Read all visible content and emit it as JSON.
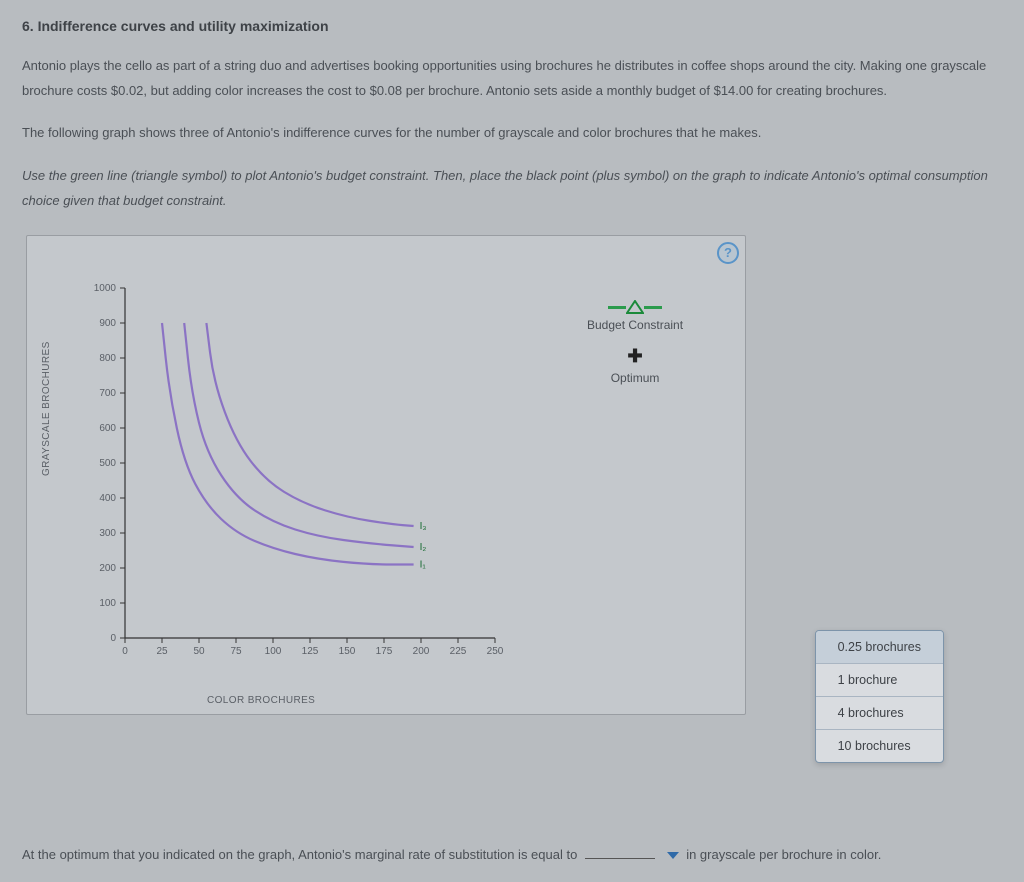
{
  "title": "6. Indifference curves and utility maximization",
  "para1": "Antonio plays the cello as part of a string duo and advertises booking opportunities using brochures he distributes in coffee shops around the city. Making one grayscale brochure costs $0.02, but adding color increases the cost to $0.08 per brochure. Antonio sets aside a monthly budget of $14.00 for creating brochures.",
  "para2": "The following graph shows three of Antonio's indifference curves for the number of grayscale and color brochures that he makes.",
  "instruction": "Use the green line (triangle symbol) to plot Antonio's budget constraint. Then, place the black point (plus symbol) on the graph to indicate Antonio's optimal consumption choice given that budget constraint.",
  "help_symbol": "?",
  "chart": {
    "type": "line",
    "xlabel": "COLOR BROCHURES",
    "ylabel": "GRAYSCALE BROCHURES",
    "xlim": [
      0,
      250
    ],
    "xtick_step": 25,
    "ylim": [
      0,
      1000
    ],
    "ytick_step": 100,
    "background": "#c4c8cc",
    "axis_color": "#333333",
    "curve_color": "#8b73c4",
    "curve_width": 2.2,
    "curves": [
      {
        "label": "I₁",
        "label_pos": [
          195,
          210
        ],
        "points": [
          [
            25,
            900
          ],
          [
            30,
            700
          ],
          [
            40,
            500
          ],
          [
            55,
            380
          ],
          [
            75,
            300
          ],
          [
            100,
            255
          ],
          [
            130,
            225
          ],
          [
            165,
            210
          ],
          [
            195,
            210
          ]
        ]
      },
      {
        "label": "I₂",
        "label_pos": [
          195,
          260
        ],
        "points": [
          [
            40,
            900
          ],
          [
            45,
            700
          ],
          [
            55,
            530
          ],
          [
            75,
            400
          ],
          [
            100,
            330
          ],
          [
            130,
            290
          ],
          [
            165,
            270
          ],
          [
            195,
            260
          ]
        ]
      },
      {
        "label": "I₃",
        "label_pos": [
          195,
          320
        ],
        "points": [
          [
            55,
            900
          ],
          [
            60,
            730
          ],
          [
            75,
            560
          ],
          [
            95,
            450
          ],
          [
            120,
            385
          ],
          [
            150,
            345
          ],
          [
            180,
            325
          ],
          [
            195,
            320
          ]
        ]
      }
    ],
    "legend": {
      "budget_constraint": "Budget Constraint",
      "optimum": "Optimum",
      "triangle_color": "#2b9b4c",
      "plus_color": "#222222"
    }
  },
  "dropdown": {
    "options": [
      "0.25 brochures",
      "1 brochure",
      "4 brochures",
      "10 brochures"
    ],
    "selected_index": 0,
    "border_color": "#7d94aa",
    "bg_color": "#d9dce0"
  },
  "question": {
    "prefix": "At the optimum that you indicated on the graph, Antonio's marginal rate of substitution is equal to",
    "suffix": "in grayscale per brochure in color."
  }
}
